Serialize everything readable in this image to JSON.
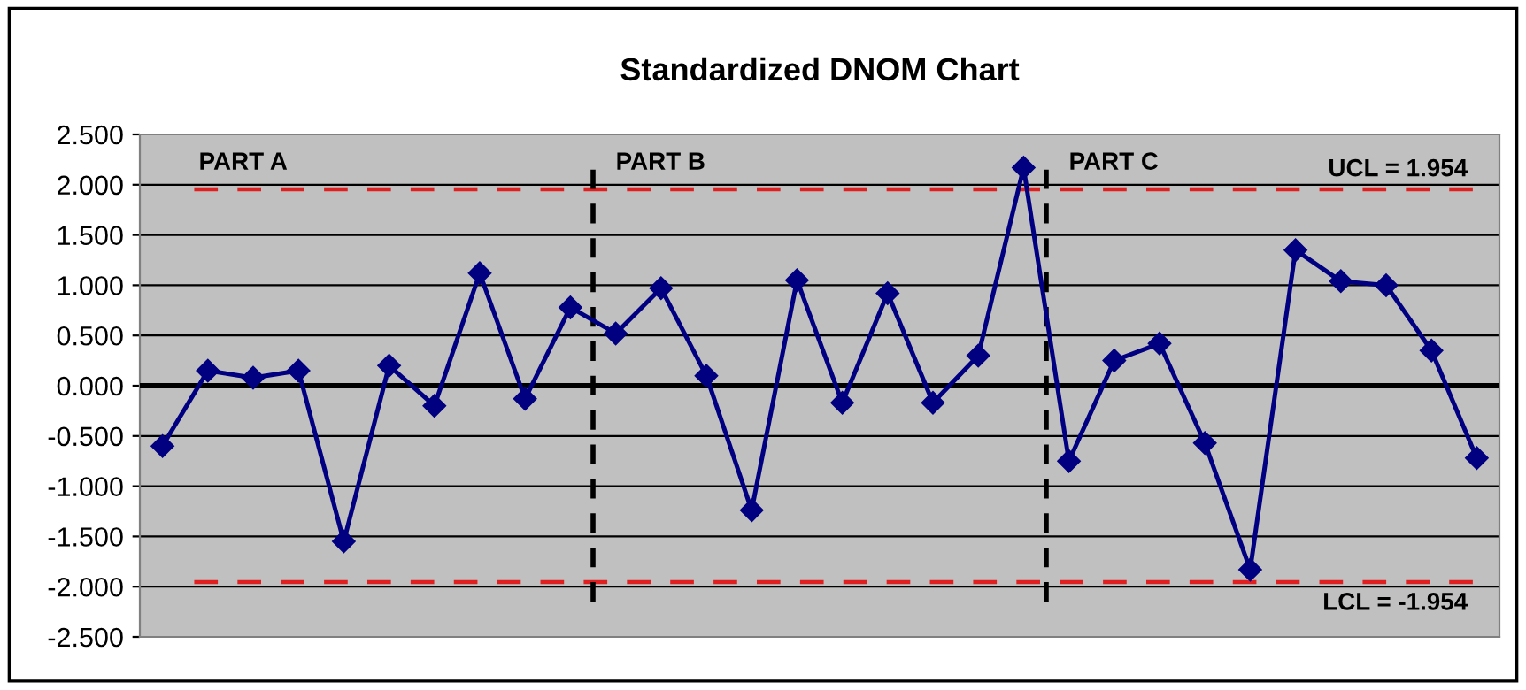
{
  "chart_data": {
    "type": "line",
    "title": "Standardized DNOM Chart",
    "categories": [
      null,
      null,
      null,
      null,
      null,
      null,
      null,
      null,
      null,
      null,
      null,
      null,
      null,
      null,
      null,
      null,
      null,
      null,
      null,
      null,
      null,
      null,
      null,
      null,
      null,
      null,
      null,
      null,
      null,
      null
    ],
    "series": [
      {
        "color": "#000080",
        "values": [
          -0.6,
          0.15,
          0.08,
          0.15,
          -1.55,
          0.2,
          -0.2,
          1.12,
          -0.13,
          0.78,
          0.52,
          0.97,
          0.1,
          -1.24,
          1.05,
          -0.17,
          0.92,
          -0.17,
          0.3,
          2.17,
          -0.75,
          0.25,
          0.42,
          -0.57,
          -1.83,
          1.35,
          1.04,
          1.0,
          0.35,
          -0.72
        ]
      }
    ],
    "marker": "diamond",
    "line_style": "solid",
    "ylim": [
      -2.5,
      2.5
    ],
    "yticks": [
      {
        "value": -2.5,
        "label": "-2.500"
      },
      {
        "value": -2.0,
        "label": "-2.000"
      },
      {
        "value": -1.5,
        "label": "-1.500"
      },
      {
        "value": -1.0,
        "label": "-1.000"
      },
      {
        "value": -0.5,
        "label": "-0.500"
      },
      {
        "value": 0,
        "label": "0.000"
      },
      {
        "value": 0.5,
        "label": "0.500"
      },
      {
        "value": 1.0,
        "label": "1.000"
      },
      {
        "value": 1.5,
        "label": "1.500"
      },
      {
        "value": 2.0,
        "label": "2.000"
      },
      {
        "value": 2.5,
        "label": "2.500"
      }
    ],
    "grid": "y",
    "tick_labels": "y",
    "ref_lines": [
      {
        "axis": "y",
        "value": 1.954,
        "label": "UCL = 1.954",
        "color": "#e02020",
        "line_style": "dashed"
      },
      {
        "axis": "y",
        "value": -1.954,
        "label": "LCL = -1.954",
        "color": "#e02020",
        "line_style": "dashed"
      },
      {
        "axis": "y",
        "value": 0,
        "color": "#000000",
        "line_style": "solid"
      }
    ],
    "annotations": [
      "PART A",
      "PART B",
      "PART C"
    ]
  }
}
